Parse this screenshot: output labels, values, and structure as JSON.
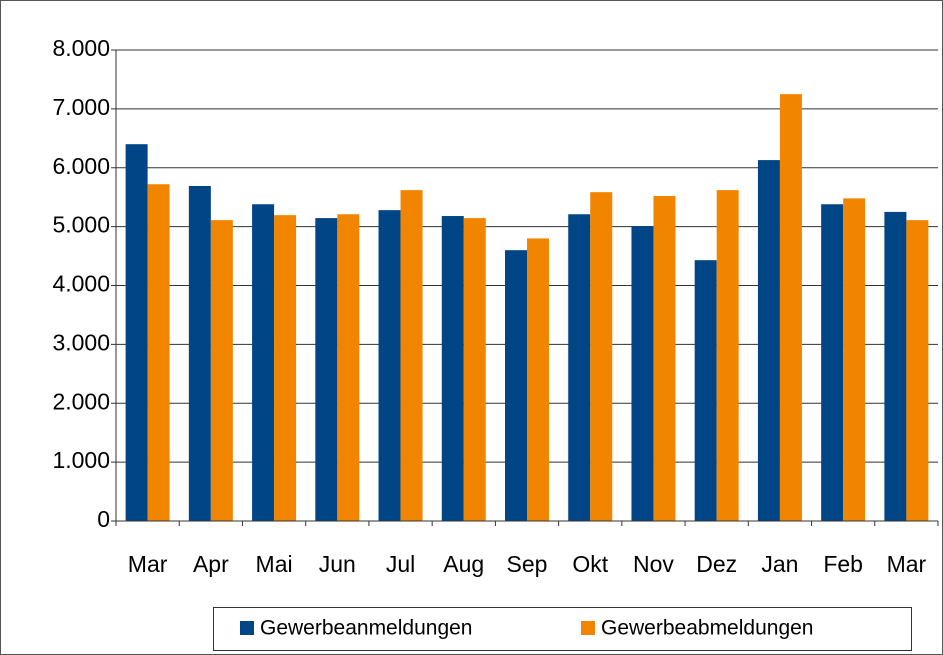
{
  "chart_data": {
    "type": "bar",
    "categories": [
      "Mar",
      "Apr",
      "Mai",
      "Jun",
      "Jul",
      "Aug",
      "Sep",
      "Okt",
      "Nov",
      "Dez",
      "Jan",
      "Feb",
      "Mar"
    ],
    "series": [
      {
        "name": "Gewerbeanmeldungen",
        "color": "#004586",
        "values": [
          6400,
          5690,
          5380,
          5145,
          5280,
          5180,
          4600,
          5210,
          5010,
          4430,
          6130,
          5380,
          5250
        ]
      },
      {
        "name": "Gewerbeabmeldungen",
        "color": "#f28500",
        "values": [
          5720,
          5110,
          5195,
          5210,
          5620,
          5145,
          4800,
          5585,
          5520,
          5620,
          7250,
          5480,
          5110
        ]
      }
    ],
    "ylim": [
      0,
      8000
    ],
    "yticks": [
      0,
      {
        "value": 1000,
        "label": "1.000"
      },
      {
        "value": 2000,
        "label": "2.000"
      },
      {
        "value": 3000,
        "label": "3.000"
      },
      {
        "value": 4000,
        "label": "4.000"
      },
      {
        "value": 5000,
        "label": "5.000"
      },
      {
        "value": 6000,
        "label": "6.000"
      },
      {
        "value": 7000,
        "label": "7.000"
      },
      {
        "value": 8000,
        "label": "8.000"
      }
    ],
    "grid": true,
    "legend": "bottom-right"
  }
}
